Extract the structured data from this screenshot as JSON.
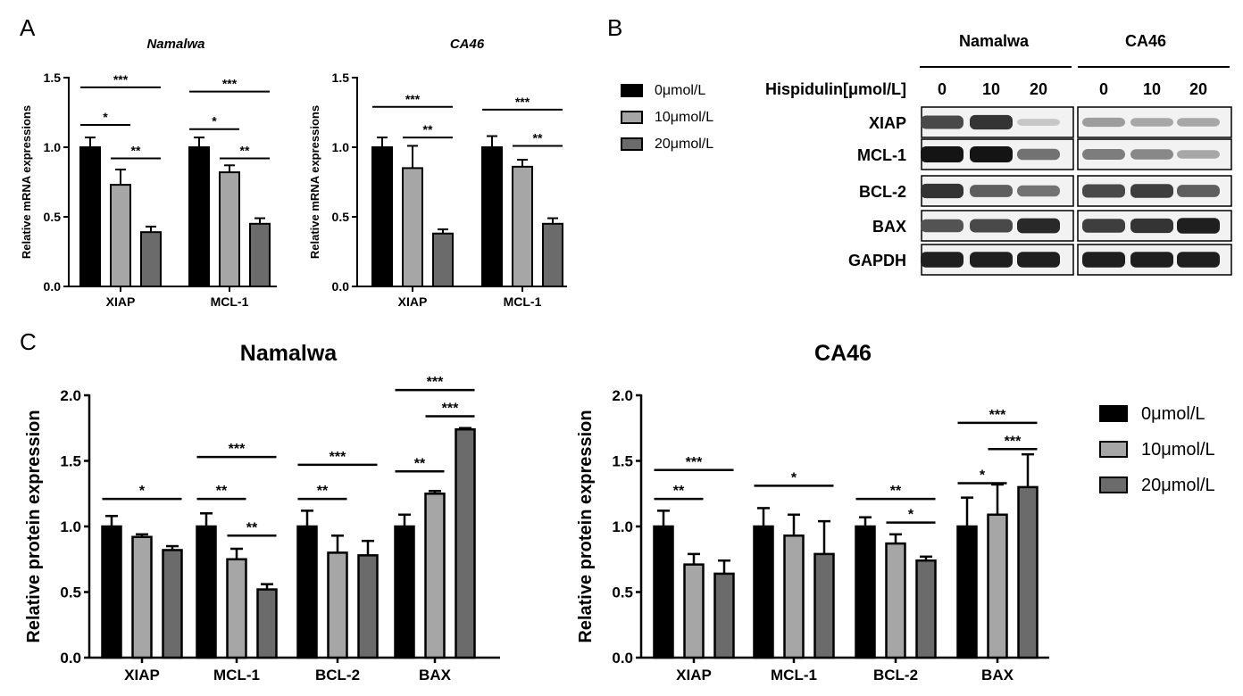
{
  "panels": {
    "A": "A",
    "B": "B",
    "C": "C"
  },
  "legend_labels": [
    "0μmol/L",
    "10μmol/L",
    "20μmol/L"
  ],
  "colors": {
    "group0": "#000000",
    "group10": "#a6a6a6",
    "group20": "#6b6b6b"
  },
  "chart_data": [
    {
      "type": "bar",
      "panel": "A",
      "title": "Namalwa",
      "ylabel": "Relative mRNA expressions",
      "ylim": [
        0,
        1.5
      ],
      "yticks": [
        "0.0",
        "0.5",
        "1.0",
        "1.5"
      ],
      "categories": [
        "XIAP",
        "MCL-1"
      ],
      "series": [
        {
          "name": "0μmol/L",
          "values": [
            1.0,
            1.0
          ],
          "errors": [
            0.07,
            0.07
          ]
        },
        {
          "name": "10μmol/L",
          "values": [
            0.73,
            0.82
          ],
          "errors": [
            0.11,
            0.05
          ]
        },
        {
          "name": "20μmol/L",
          "values": [
            0.39,
            0.45
          ],
          "errors": [
            0.04,
            0.04
          ]
        }
      ],
      "significance": [
        {
          "group": 0,
          "from": 0,
          "to": 2,
          "y": 1.43,
          "label": "***"
        },
        {
          "group": 0,
          "from": 0,
          "to": 1,
          "y": 1.16,
          "label": "*"
        },
        {
          "group": 0,
          "from": 1,
          "to": 2,
          "y": 0.92,
          "label": "**"
        },
        {
          "group": 1,
          "from": 0,
          "to": 2,
          "y": 1.4,
          "label": "***"
        },
        {
          "group": 1,
          "from": 0,
          "to": 1,
          "y": 1.13,
          "label": "*"
        },
        {
          "group": 1,
          "from": 1,
          "to": 2,
          "y": 0.92,
          "label": "**"
        }
      ]
    },
    {
      "type": "bar",
      "panel": "A",
      "title": "CA46",
      "ylabel": "Relative mRNA expressions",
      "ylim": [
        0,
        1.5
      ],
      "yticks": [
        "0.0",
        "0.5",
        "1.0",
        "1.5"
      ],
      "categories": [
        "XIAP",
        "MCL-1"
      ],
      "series": [
        {
          "name": "0μmol/L",
          "values": [
            1.0,
            1.0
          ],
          "errors": [
            0.07,
            0.08
          ]
        },
        {
          "name": "10μmol/L",
          "values": [
            0.85,
            0.86
          ],
          "errors": [
            0.16,
            0.05
          ]
        },
        {
          "name": "20μmol/L",
          "values": [
            0.38,
            0.45
          ],
          "errors": [
            0.03,
            0.04
          ]
        }
      ],
      "significance": [
        {
          "group": 0,
          "from": 0,
          "to": 2,
          "y": 1.29,
          "label": "***"
        },
        {
          "group": 0,
          "from": 1,
          "to": 2,
          "y": 1.07,
          "label": "**"
        },
        {
          "group": 1,
          "from": 0,
          "to": 2,
          "y": 1.27,
          "label": "***"
        },
        {
          "group": 1,
          "from": 1,
          "to": 2,
          "y": 1.01,
          "label": "**"
        }
      ]
    },
    {
      "type": "bar",
      "panel": "C",
      "title": "Namalwa",
      "ylabel": "Relative protein expression",
      "ylim": [
        0,
        2.0
      ],
      "yticks": [
        "0.0",
        "0.5",
        "1.0",
        "1.5",
        "2.0"
      ],
      "categories": [
        "XIAP",
        "MCL-1",
        "BCL-2",
        "BAX"
      ],
      "series": [
        {
          "name": "0μmol/L",
          "values": [
            1.0,
            1.0,
            1.0,
            1.0
          ],
          "errors": [
            0.08,
            0.1,
            0.12,
            0.09
          ]
        },
        {
          "name": "10μmol/L",
          "values": [
            0.92,
            0.75,
            0.8,
            1.25
          ],
          "errors": [
            0.02,
            0.08,
            0.13,
            0.02
          ]
        },
        {
          "name": "20μmol/L",
          "values": [
            0.82,
            0.52,
            0.78,
            1.74
          ],
          "errors": [
            0.03,
            0.04,
            0.11,
            0.01
          ]
        }
      ],
      "significance": [
        {
          "group": 0,
          "from": 0,
          "to": 2,
          "y": 1.21,
          "label": "*"
        },
        {
          "group": 1,
          "from": 0,
          "to": 2,
          "y": 1.53,
          "label": "***"
        },
        {
          "group": 1,
          "from": 0,
          "to": 1,
          "y": 1.21,
          "label": "**"
        },
        {
          "group": 1,
          "from": 1,
          "to": 2,
          "y": 0.93,
          "label": "**"
        },
        {
          "group": 2,
          "from": 0,
          "to": 2,
          "y": 1.47,
          "label": "***"
        },
        {
          "group": 2,
          "from": 0,
          "to": 1,
          "y": 1.21,
          "label": "**"
        },
        {
          "group": 3,
          "from": 0,
          "to": 2,
          "y": 2.04,
          "label": "***"
        },
        {
          "group": 3,
          "from": 1,
          "to": 2,
          "y": 1.84,
          "label": "***"
        },
        {
          "group": 3,
          "from": 0,
          "to": 1,
          "y": 1.42,
          "label": "**"
        }
      ]
    },
    {
      "type": "bar",
      "panel": "C",
      "title": "CA46",
      "ylabel": "Relative protein expression",
      "ylim": [
        0,
        2.0
      ],
      "yticks": [
        "0.0",
        "0.5",
        "1.0",
        "1.5",
        "2.0"
      ],
      "categories": [
        "XIAP",
        "MCL-1",
        "BCL-2",
        "BAX"
      ],
      "series": [
        {
          "name": "0μmol/L",
          "values": [
            1.0,
            1.0,
            1.0,
            1.0
          ],
          "errors": [
            0.12,
            0.14,
            0.07,
            0.22
          ]
        },
        {
          "name": "10μmol/L",
          "values": [
            0.71,
            0.93,
            0.87,
            1.09
          ],
          "errors": [
            0.08,
            0.16,
            0.07,
            0.23
          ]
        },
        {
          "name": "20μmol/L",
          "values": [
            0.64,
            0.79,
            0.74,
            1.3
          ],
          "errors": [
            0.1,
            0.25,
            0.03,
            0.25
          ]
        }
      ],
      "significance": [
        {
          "group": 0,
          "from": 0,
          "to": 2,
          "y": 1.43,
          "label": "***"
        },
        {
          "group": 0,
          "from": 0,
          "to": 1,
          "y": 1.21,
          "label": "**"
        },
        {
          "group": 1,
          "from": 0,
          "to": 2,
          "y": 1.31,
          "label": "*"
        },
        {
          "group": 2,
          "from": 0,
          "to": 2,
          "y": 1.21,
          "label": "**"
        },
        {
          "group": 2,
          "from": 1,
          "to": 2,
          "y": 1.03,
          "label": "*"
        },
        {
          "group": 3,
          "from": 0,
          "to": 2,
          "y": 1.79,
          "label": "***"
        },
        {
          "group": 3,
          "from": 1,
          "to": 2,
          "y": 1.59,
          "label": "***"
        },
        {
          "group": 3,
          "from": 0,
          "to": 1,
          "y": 1.33,
          "label": "*"
        }
      ]
    }
  ],
  "blot": {
    "cell_lines": [
      "Namalwa",
      "CA46"
    ],
    "treatment_label": "Hispidulin[μmol/L]",
    "doses": [
      "0",
      "10",
      "20"
    ],
    "proteins": [
      "XIAP",
      "MCL-1",
      "BCL-2",
      "BAX",
      "GAPDH"
    ],
    "band_intensity": {
      "Namalwa": [
        [
          0.75,
          0.85,
          0.15
        ],
        [
          1.0,
          1.0,
          0.55
        ],
        [
          0.85,
          0.65,
          0.55
        ],
        [
          0.7,
          0.75,
          0.9
        ],
        [
          0.95,
          0.95,
          0.95
        ]
      ],
      "CA46": [
        [
          0.35,
          0.3,
          0.3
        ],
        [
          0.5,
          0.45,
          0.3
        ],
        [
          0.75,
          0.8,
          0.65
        ],
        [
          0.8,
          0.85,
          0.95
        ],
        [
          0.95,
          0.95,
          0.95
        ]
      ]
    }
  }
}
